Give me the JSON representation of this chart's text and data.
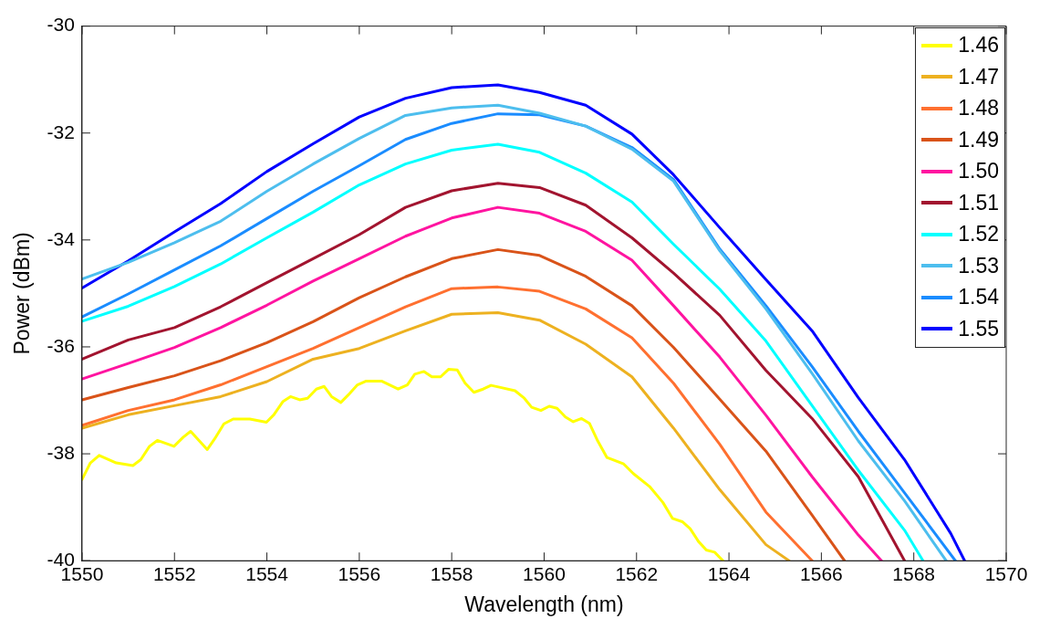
{
  "chart_data": {
    "type": "line",
    "xlabel": "Wavelength (nm)",
    "ylabel": "Power (dBm)",
    "xlim": [
      1550,
      1570
    ],
    "xticks": [
      1550,
      1552,
      1554,
      1556,
      1558,
      1560,
      1562,
      1564,
      1566,
      1568,
      1570
    ],
    "ylim": [
      -40,
      -30
    ],
    "yticks": [
      -40,
      -38,
      -36,
      -34,
      -32,
      -30
    ],
    "legend": "top right",
    "series": [
      {
        "name": "1.46",
        "color": "#ffff00",
        "x": [
          1550,
          1550.18,
          1550.37,
          1550.74,
          1551.1,
          1551.27,
          1551.46,
          1551.63,
          1551.99,
          1552.19,
          1552.35,
          1552.71,
          1552.87,
          1553.07,
          1553.27,
          1553.63,
          1553.99,
          1554.15,
          1554.35,
          1554.51,
          1554.71,
          1554.88,
          1555.07,
          1555.24,
          1555.4,
          1555.6,
          1555.76,
          1555.96,
          1556.15,
          1556.48,
          1556.84,
          1557.04,
          1557.2,
          1557.4,
          1557.57,
          1557.76,
          1557.93,
          1558.12,
          1558.29,
          1558.48,
          1558.68,
          1558.85,
          1559.01,
          1559.37,
          1559.57,
          1559.73,
          1559.93,
          1560.11,
          1560.28,
          1560.46,
          1560.63,
          1560.81,
          1560.98,
          1561.16,
          1561.36,
          1561.72,
          1561.93,
          1562.28,
          1562.57,
          1562.78,
          1562.99,
          1563.16,
          1563.34,
          1563.51,
          1563.69,
          1563.87
        ],
        "values": [
          -38.48,
          -38.17,
          -38.03,
          -38.17,
          -38.22,
          -38.11,
          -37.86,
          -37.75,
          -37.86,
          -37.69,
          -37.58,
          -37.92,
          -37.72,
          -37.44,
          -37.35,
          -37.35,
          -37.41,
          -37.27,
          -37.02,
          -36.93,
          -36.99,
          -36.96,
          -36.79,
          -36.74,
          -36.93,
          -37.04,
          -36.9,
          -36.71,
          -36.64,
          -36.64,
          -36.79,
          -36.71,
          -36.51,
          -36.46,
          -36.56,
          -36.56,
          -36.42,
          -36.43,
          -36.68,
          -36.85,
          -36.79,
          -36.72,
          -36.75,
          -36.82,
          -36.96,
          -37.13,
          -37.19,
          -37.11,
          -37.15,
          -37.31,
          -37.4,
          -37.34,
          -37.43,
          -37.76,
          -38.07,
          -38.19,
          -38.37,
          -38.61,
          -38.91,
          -39.21,
          -39.27,
          -39.4,
          -39.64,
          -39.8,
          -39.84,
          -40
        ]
      },
      {
        "name": "1.47",
        "color": "#edb120",
        "x": [
          1550,
          1551,
          1552,
          1553,
          1554,
          1555,
          1556,
          1557,
          1558,
          1559,
          1559.9,
          1560.9,
          1561.9,
          1562.8,
          1563.8,
          1564.8,
          1565.3
        ],
        "values": [
          -37.52,
          -37.27,
          -37.1,
          -36.93,
          -36.65,
          -36.23,
          -36.03,
          -35.7,
          -35.39,
          -35.36,
          -35.5,
          -35.95,
          -36.56,
          -37.52,
          -38.67,
          -39.7,
          -40
        ]
      },
      {
        "name": "1.48",
        "color": "#ff7030",
        "x": [
          1550,
          1551,
          1552,
          1553,
          1554,
          1555,
          1556,
          1557,
          1558,
          1559,
          1559.9,
          1560.9,
          1561.9,
          1562.8,
          1563.8,
          1564.8,
          1565.8
        ],
        "values": [
          -37.47,
          -37.19,
          -36.99,
          -36.71,
          -36.37,
          -36.03,
          -35.64,
          -35.25,
          -34.91,
          -34.88,
          -34.96,
          -35.29,
          -35.83,
          -36.68,
          -37.82,
          -39.09,
          -40
        ]
      },
      {
        "name": "1.49",
        "color": "#d95319",
        "x": [
          1550,
          1551,
          1552,
          1553,
          1554,
          1555,
          1556,
          1557,
          1558,
          1559,
          1559.9,
          1560.9,
          1561.9,
          1562.8,
          1563.8,
          1564.8,
          1565.8,
          1566.5
        ],
        "values": [
          -36.99,
          -36.76,
          -36.54,
          -36.26,
          -35.92,
          -35.53,
          -35.08,
          -34.69,
          -34.35,
          -34.18,
          -34.29,
          -34.68,
          -35.23,
          -36.01,
          -36.98,
          -37.95,
          -39.15,
          -40
        ]
      },
      {
        "name": "1.50",
        "color": "#ff14a0",
        "x": [
          1550,
          1551,
          1552,
          1553,
          1554,
          1555,
          1556,
          1557,
          1558,
          1559,
          1559.9,
          1560.9,
          1561.9,
          1562.8,
          1563.8,
          1564.8,
          1565.8,
          1566.8,
          1567.3
        ],
        "values": [
          -36.6,
          -36.31,
          -36.01,
          -35.64,
          -35.22,
          -34.77,
          -34.35,
          -33.93,
          -33.59,
          -33.39,
          -33.5,
          -33.84,
          -34.38,
          -35.23,
          -36.19,
          -37.28,
          -38.43,
          -39.52,
          -40
        ]
      },
      {
        "name": "1.51",
        "color": "#a2142f",
        "x": [
          1550,
          1551,
          1552,
          1553,
          1554,
          1555,
          1556,
          1557,
          1558,
          1559,
          1559.9,
          1560.9,
          1561.9,
          1562.8,
          1563.8,
          1564.8,
          1565.8,
          1566.8,
          1567.8
        ],
        "values": [
          -36.23,
          -35.87,
          -35.64,
          -35.25,
          -34.8,
          -34.35,
          -33.9,
          -33.39,
          -33.08,
          -32.94,
          -33.02,
          -33.35,
          -33.96,
          -34.62,
          -35.41,
          -36.44,
          -37.34,
          -38.43,
          -40
        ]
      },
      {
        "name": "1.52",
        "color": "#00ffff",
        "x": [
          1550,
          1551,
          1552,
          1553,
          1554,
          1555,
          1556,
          1557,
          1558,
          1559,
          1559.9,
          1560.9,
          1561.9,
          1562.8,
          1563.8,
          1564.8,
          1565.8,
          1566.8,
          1567.8,
          1568.2
        ],
        "values": [
          -35.52,
          -35.24,
          -34.87,
          -34.45,
          -33.96,
          -33.48,
          -32.97,
          -32.58,
          -32.32,
          -32.21,
          -32.36,
          -32.75,
          -33.29,
          -34.08,
          -34.92,
          -35.89,
          -37.1,
          -38.31,
          -39.43,
          -40
        ]
      },
      {
        "name": "1.53",
        "color": "#4dbeee",
        "x": [
          1550,
          1551,
          1552,
          1553,
          1554,
          1555,
          1556,
          1557,
          1558,
          1559,
          1559.9,
          1560.9,
          1561.9,
          1562.8,
          1563.8,
          1564.8,
          1565.8,
          1566.8,
          1567.8,
          1568.7
        ],
        "values": [
          -34.73,
          -34.42,
          -34.05,
          -33.65,
          -33.09,
          -32.58,
          -32.1,
          -31.67,
          -31.53,
          -31.48,
          -31.63,
          -31.87,
          -32.3,
          -32.9,
          -34.2,
          -35.29,
          -36.5,
          -37.76,
          -38.88,
          -40
        ]
      },
      {
        "name": "1.54",
        "color": "#1a8cff",
        "x": [
          1550,
          1551,
          1552,
          1553,
          1554,
          1555,
          1556,
          1557,
          1558,
          1559,
          1559.9,
          1560.9,
          1561.9,
          1562.8,
          1563.8,
          1564.8,
          1565.8,
          1566.8,
          1567.8,
          1568.9
        ],
        "values": [
          -35.44,
          -35.01,
          -34.56,
          -34.11,
          -33.6,
          -33.09,
          -32.61,
          -32.12,
          -31.82,
          -31.64,
          -31.66,
          -31.87,
          -32.27,
          -32.87,
          -34.17,
          -35.23,
          -36.37,
          -37.58,
          -38.73,
          -40
        ]
      },
      {
        "name": "1.55",
        "color": "#0000ff",
        "x": [
          1550,
          1551,
          1552,
          1553,
          1554,
          1555,
          1556,
          1557,
          1558,
          1559,
          1559.9,
          1560.9,
          1561.9,
          1562.8,
          1563.8,
          1564.8,
          1565.8,
          1566.8,
          1567.8,
          1568.8,
          1569.1
        ],
        "values": [
          -34.9,
          -34.39,
          -33.85,
          -33.32,
          -32.72,
          -32.2,
          -31.7,
          -31.35,
          -31.15,
          -31.1,
          -31.24,
          -31.48,
          -32.02,
          -32.78,
          -33.77,
          -34.74,
          -35.7,
          -36.95,
          -38.11,
          -39.49,
          -40
        ]
      }
    ]
  }
}
